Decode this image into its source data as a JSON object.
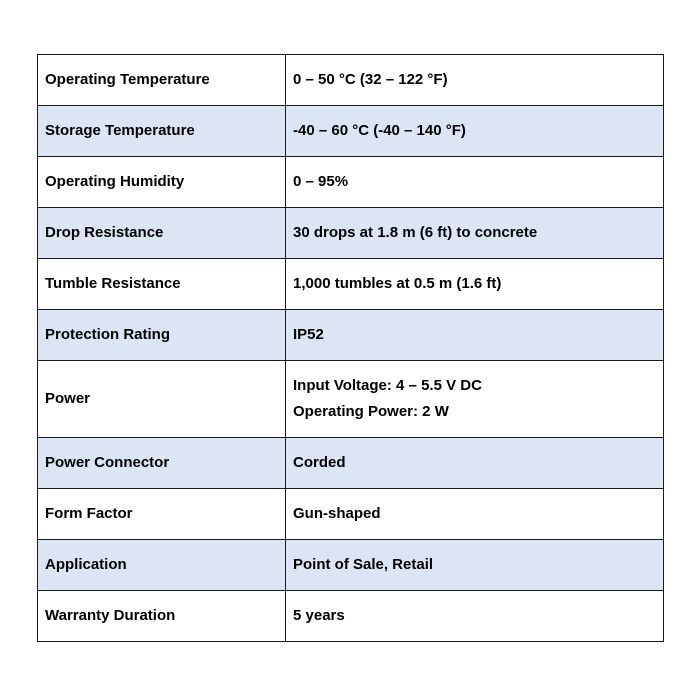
{
  "table": {
    "description": "Product specification table",
    "colors": {
      "alt_row_background": "#dbe5f4",
      "row_background": "#ffffff",
      "border": "#1a1a1a",
      "text": "#000000"
    },
    "rows": [
      {
        "label": "Operating Temperature",
        "value": "0 – 50 °C (32 – 122 °F)"
      },
      {
        "label": "Storage Temperature",
        "value": "-40 – 60 °C (-40 – 140 °F)"
      },
      {
        "label": "Operating Humidity",
        "value": "0 – 95%"
      },
      {
        "label": "Drop Resistance",
        "value": "30 drops at 1.8 m (6 ft) to concrete"
      },
      {
        "label": "Tumble Resistance",
        "value": "1,000 tumbles at 0.5 m (1.6 ft)"
      },
      {
        "label": "Protection Rating",
        "value": "IP52"
      },
      {
        "label": "Power",
        "value": "Input Voltage: 4 – 5.5 V DC\nOperating Power: 2 W"
      },
      {
        "label": "Power Connector",
        "value": "Corded"
      },
      {
        "label": "Form Factor",
        "value": "Gun-shaped"
      },
      {
        "label": "Application",
        "value": "Point of Sale, Retail"
      },
      {
        "label": "Warranty Duration",
        "value": "5 years"
      }
    ]
  }
}
